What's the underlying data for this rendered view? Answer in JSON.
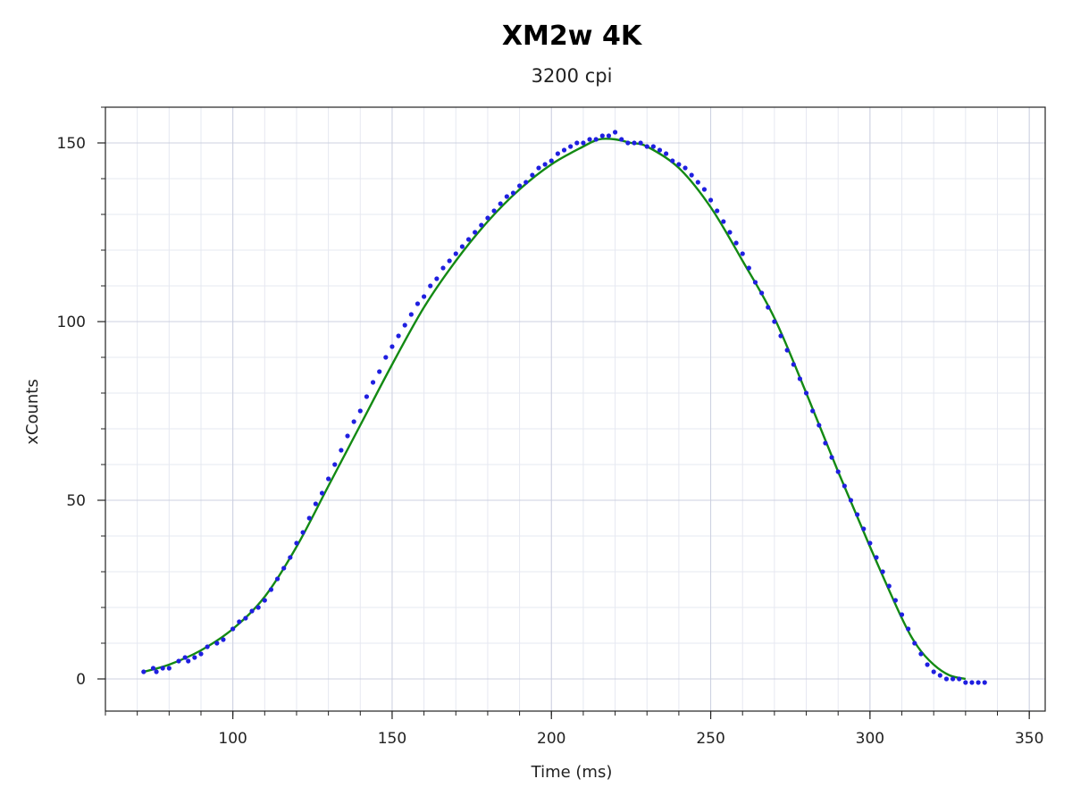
{
  "chart_data": {
    "type": "scatter",
    "title": "XM2w 4K",
    "subtitle": "3200 cpi",
    "xlabel": "Time (ms)",
    "ylabel": "xCounts",
    "xlim": [
      60,
      355
    ],
    "ylim": [
      -9,
      160
    ],
    "x_ticks": [
      100,
      150,
      200,
      250,
      300,
      350
    ],
    "y_ticks": [
      0,
      50,
      100,
      150
    ],
    "grid": true,
    "colors": {
      "points": "#1f1fe0",
      "fit": "#138a13",
      "major_grid": "#ccd0e0",
      "minor_grid": "#e6e8f1",
      "axis": "#222222"
    },
    "series": [
      {
        "kind": "points",
        "x": [
          72,
          75,
          76,
          78,
          80,
          83,
          85,
          86,
          88,
          90,
          92,
          95,
          97,
          100,
          102,
          104,
          106,
          108,
          110,
          112,
          114,
          116,
          118,
          120,
          122,
          124,
          126,
          128,
          130,
          132,
          134,
          136,
          138,
          140,
          142,
          144,
          146,
          148,
          150,
          152,
          154,
          156,
          158,
          160,
          162,
          164,
          166,
          168,
          170,
          172,
          174,
          176,
          178,
          180,
          182,
          184,
          186,
          188,
          190,
          192,
          194,
          196,
          198,
          200,
          202,
          204,
          206,
          208,
          210,
          212,
          214,
          216,
          218,
          220,
          222,
          224,
          226,
          228,
          230,
          232,
          234,
          236,
          238,
          240,
          242,
          244,
          246,
          248,
          250,
          252,
          254,
          256,
          258,
          260,
          262,
          264,
          266,
          268,
          270,
          272,
          274,
          276,
          278,
          280,
          282,
          284,
          286,
          288,
          290,
          292,
          294,
          296,
          298,
          300,
          302,
          304,
          306,
          308,
          310,
          312,
          314,
          316,
          318,
          320,
          322,
          324,
          326,
          328,
          330,
          332,
          334,
          336
        ],
        "y": [
          2,
          3,
          2,
          3,
          3,
          5,
          6,
          5,
          6,
          7,
          9,
          10,
          11,
          14,
          16,
          17,
          19,
          20,
          22,
          25,
          28,
          31,
          34,
          38,
          41,
          45,
          49,
          52,
          56,
          60,
          64,
          68,
          72,
          75,
          79,
          83,
          86,
          90,
          93,
          96,
          99,
          102,
          105,
          107,
          110,
          112,
          115,
          117,
          119,
          121,
          123,
          125,
          127,
          129,
          131,
          133,
          135,
          136,
          138,
          139,
          141,
          143,
          144,
          145,
          147,
          148,
          149,
          150,
          150,
          151,
          151,
          152,
          152,
          153,
          151,
          150,
          150,
          150,
          149,
          149,
          148,
          147,
          145,
          144,
          143,
          141,
          139,
          137,
          134,
          131,
          128,
          125,
          122,
          119,
          115,
          111,
          108,
          104,
          100,
          96,
          92,
          88,
          84,
          80,
          75,
          71,
          66,
          62,
          58,
          54,
          50,
          46,
          42,
          38,
          34,
          30,
          26,
          22,
          18,
          14,
          10,
          7,
          4,
          2,
          1,
          0,
          0,
          0,
          -1,
          -1,
          -1,
          -1
        ]
      },
      {
        "kind": "fit",
        "x": [
          72,
          80,
          90,
          100,
          110,
          120,
          130,
          140,
          150,
          160,
          170,
          180,
          190,
          200,
          210,
          215,
          220,
          225,
          230,
          240,
          250,
          260,
          270,
          280,
          290,
          300,
          310,
          315,
          320,
          325,
          330
        ],
        "y": [
          2,
          4,
          8,
          14,
          23,
          37,
          54,
          71,
          88,
          104,
          117,
          128,
          137,
          144,
          149,
          151,
          151,
          150,
          149,
          143,
          132,
          117,
          101,
          80,
          58,
          37,
          17,
          9,
          4,
          1,
          0
        ]
      }
    ]
  }
}
